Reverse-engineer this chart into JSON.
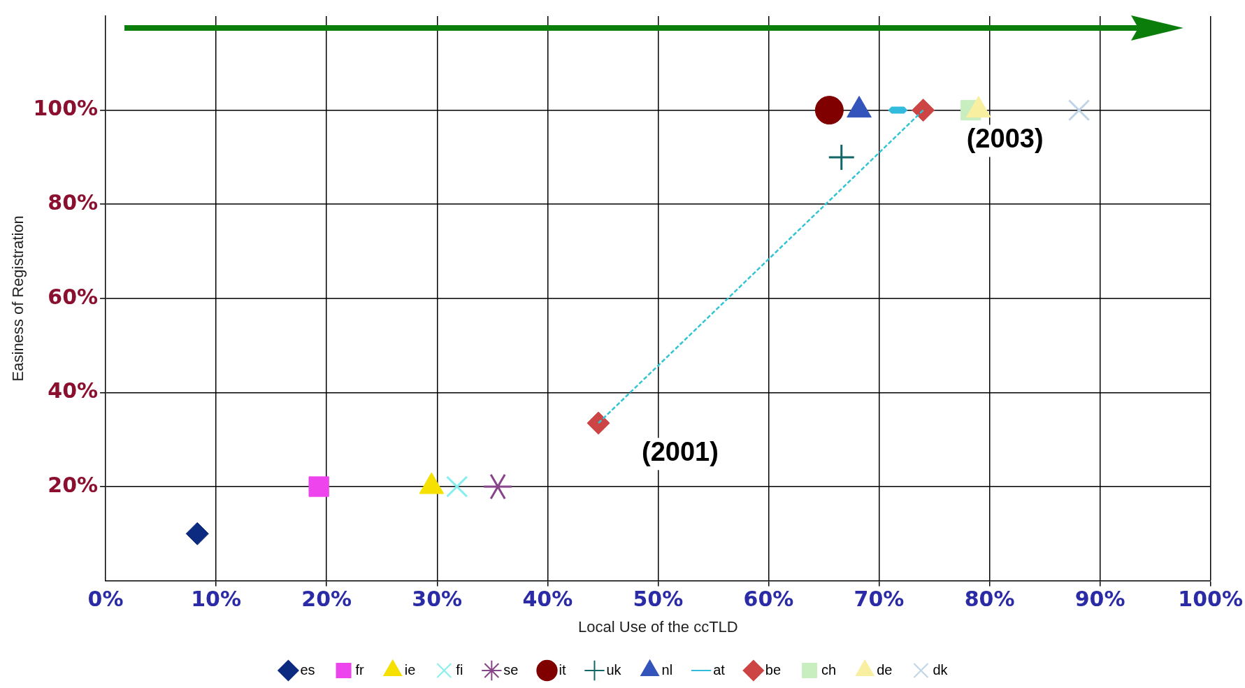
{
  "chart_data": {
    "type": "scatter",
    "xlabel": "Local Use of the ccTLD",
    "ylabel": "Easiness of Registration",
    "xlim": [
      0,
      100
    ],
    "ylim": [
      0,
      120
    ],
    "xticks": [
      {
        "value": 0,
        "label": "0%"
      },
      {
        "value": 10,
        "label": "10%"
      },
      {
        "value": 20,
        "label": "20%"
      },
      {
        "value": 30,
        "label": "30%"
      },
      {
        "value": 40,
        "label": "40%"
      },
      {
        "value": 50,
        "label": "50%"
      },
      {
        "value": 60,
        "label": "60%"
      },
      {
        "value": 70,
        "label": "70%"
      },
      {
        "value": 80,
        "label": "80%"
      },
      {
        "value": 90,
        "label": "90%"
      },
      {
        "value": 100,
        "label": "100%"
      }
    ],
    "yticks": [
      {
        "value": 0,
        "label": null
      },
      {
        "value": 20,
        "label": "20%"
      },
      {
        "value": 40,
        "label": "40%"
      },
      {
        "value": 60,
        "label": "60%"
      },
      {
        "value": 80,
        "label": "80%"
      },
      {
        "value": 100,
        "label": "100%"
      }
    ],
    "grid": true,
    "legend": "bottom",
    "series": [
      {
        "type": "line",
        "color": "#33c4d4",
        "line_style": "dashed",
        "marker": "none",
        "x": [
          44.6,
          74
        ],
        "values": [
          33.5,
          100
        ]
      },
      {
        "name": "es",
        "color": "#0b2a80",
        "marker": "diamond",
        "x": [
          8.3
        ],
        "values": [
          10
        ]
      },
      {
        "name": "fr",
        "color": "#ee44ee",
        "marker": "square",
        "x": [
          19.3
        ],
        "values": [
          20
        ]
      },
      {
        "name": "ie",
        "color": "#f5e000",
        "marker": "triangle",
        "x": [
          29.5
        ],
        "values": [
          20
        ]
      },
      {
        "name": "fi",
        "color": "#88eeee",
        "marker": "x",
        "x": [
          31.8
        ],
        "values": [
          20
        ]
      },
      {
        "name": "se",
        "color": "#884488",
        "marker": "star",
        "x": [
          35.5
        ],
        "values": [
          20
        ]
      },
      {
        "name": "it",
        "color": "#800000",
        "marker": "circle",
        "x": [
          65.5
        ],
        "values": [
          100
        ]
      },
      {
        "name": "uk",
        "color": "#116666",
        "marker": "cross",
        "x": [
          66.6
        ],
        "values": [
          90
        ]
      },
      {
        "name": "nl",
        "color": "#3355bb",
        "marker": "triangle",
        "x": [
          68.2
        ],
        "values": [
          100
        ]
      },
      {
        "name": "at",
        "color": "#33bbdd",
        "x": [
          71.7
        ],
        "values": [
          100
        ]
      },
      {
        "name": "be",
        "color": "#cc4444",
        "marker": "diamond",
        "x": [
          44.6,
          74
        ],
        "values": [
          33.5,
          100
        ]
      },
      {
        "name": "ch",
        "color": "#c8eec0",
        "marker": "square",
        "x": [
          78.3
        ],
        "values": [
          100
        ]
      },
      {
        "name": "de",
        "color": "#f8f0a0",
        "marker": "triangle",
        "x": [
          79
        ],
        "values": [
          100
        ]
      },
      {
        "name": "dk",
        "color": "#c0d4e8",
        "marker": "x",
        "x": [
          88.1
        ],
        "values": [
          100
        ]
      }
    ],
    "annotations": [
      {
        "text": "(2001)",
        "x": 44.6,
        "y": 33.5
      },
      {
        "text": "(2003)",
        "x": 74,
        "y": 100
      }
    ]
  }
}
